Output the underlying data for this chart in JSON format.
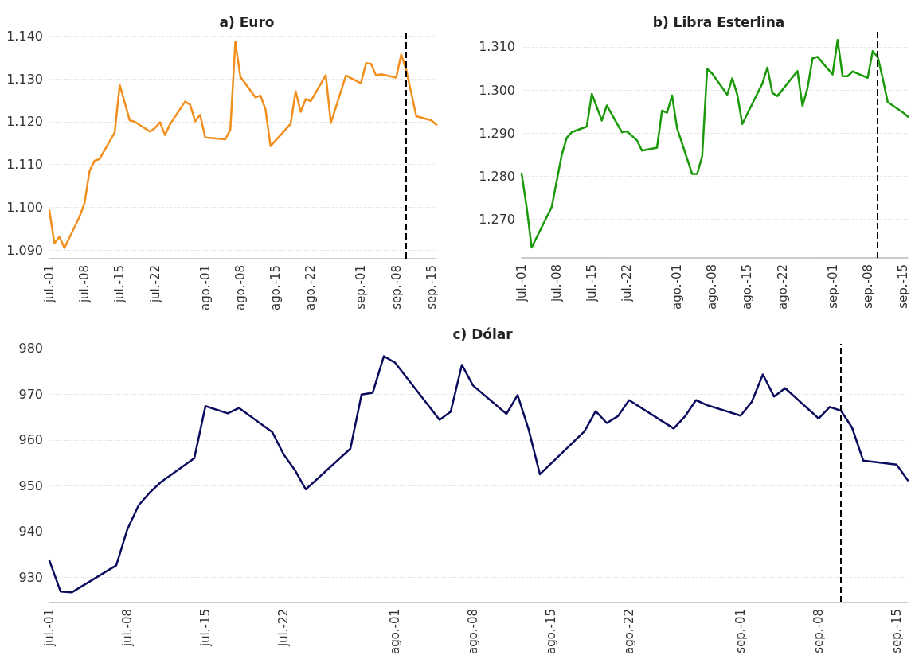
{
  "chart_data": [
    {
      "type": "line",
      "title": "a) Euro",
      "grid": "y",
      "line_style": "solid",
      "x": [
        "--07-01",
        "--07-02",
        "--07-03",
        "--07-04",
        "--07-07",
        "--07-08",
        "--07-09",
        "--07-10",
        "--07-11",
        "--07-14",
        "--07-15",
        "--07-17",
        "--07-18",
        "--07-21",
        "--07-22",
        "--07-23",
        "--07-24",
        "--07-25",
        "--07-28",
        "--07-29",
        "--07-30",
        "--07-31",
        "--08-01",
        "--08-05",
        "--08-06",
        "--08-07",
        "--08-08",
        "--08-11",
        "--08-12",
        "--08-13",
        "--08-14",
        "--08-18",
        "--08-19",
        "--08-20",
        "--08-21",
        "--08-22",
        "--08-25",
        "--08-26",
        "--08-29",
        "--09-01",
        "--09-02",
        "--09-03",
        "--09-04",
        "--09-05",
        "--09-08",
        "--09-09",
        "--09-10",
        "--09-12",
        "--09-15",
        "--09-16"
      ],
      "series": [
        {
          "color": "#f28e1c",
          "values": [
            1.0993,
            1.0916,
            1.0931,
            1.0905,
            1.0978,
            1.101,
            1.1085,
            1.1109,
            1.1113,
            1.1175,
            1.1286,
            1.1203,
            1.12,
            1.1177,
            1.1185,
            1.1199,
            1.1169,
            1.1194,
            1.1247,
            1.124,
            1.1201,
            1.1216,
            1.1163,
            1.1159,
            1.1181,
            1.1387,
            1.1305,
            1.1257,
            1.1261,
            1.1229,
            1.1143,
            1.1195,
            1.1271,
            1.1223,
            1.1253,
            1.1248,
            1.1309,
            1.1197,
            1.1308,
            1.129,
            1.1337,
            1.1335,
            1.1308,
            1.1311,
            1.1303,
            1.1357,
            1.1321,
            1.1213,
            1.1203,
            1.1193
          ]
        }
      ],
      "xlim": [
        "--07-01",
        "--09-16"
      ],
      "xticks": [
        {
          "value": "--07-01",
          "label": "jul.-01"
        },
        {
          "value": "--07-08",
          "label": "jul.-08"
        },
        {
          "value": "--07-15",
          "label": "jul.-15"
        },
        {
          "value": "--07-22",
          "label": "jul.-22"
        },
        {
          "value": "--08-01",
          "label": "ago.-01"
        },
        {
          "value": "--08-08",
          "label": "ago.-08"
        },
        {
          "value": "--08-15",
          "label": "ago.-15"
        },
        {
          "value": "--08-22",
          "label": "ago.-22"
        },
        {
          "value": "--09-01",
          "label": "sep.-01"
        },
        {
          "value": "--09-08",
          "label": "sep.-08"
        },
        {
          "value": "--09-15",
          "label": "sep.-15"
        }
      ],
      "ylim": [
        1.088,
        1.141
      ],
      "yticks": [
        {
          "value": 1.09,
          "label": "1.090"
        },
        {
          "value": 1.1,
          "label": "1.100"
        },
        {
          "value": 1.11,
          "label": "1.110"
        },
        {
          "value": 1.12,
          "label": "1.120"
        },
        {
          "value": 1.13,
          "label": "1.130"
        },
        {
          "value": 1.14,
          "label": "1.140"
        }
      ],
      "ref_lines": [
        {
          "axis": "x",
          "value": "--09-10",
          "color": "#000000",
          "line_style": "dashed"
        }
      ]
    },
    {
      "type": "line",
      "title": "b) Libra Esterlina",
      "grid": "y",
      "line_style": "solid",
      "x": [
        "--07-01",
        "--07-02",
        "--07-03",
        "--07-07",
        "--07-09",
        "--07-10",
        "--07-11",
        "--07-14",
        "--07-15",
        "--07-17",
        "--07-18",
        "--07-21",
        "--07-22",
        "--07-24",
        "--07-25",
        "--07-28",
        "--07-29",
        "--07-30",
        "--07-31",
        "--08-01",
        "--08-04",
        "--08-05",
        "--08-06",
        "--08-07",
        "--08-08",
        "--08-11",
        "--08-12",
        "--08-13",
        "--08-14",
        "--08-18",
        "--08-19",
        "--08-20",
        "--08-21",
        "--08-25",
        "--08-26",
        "--08-27",
        "--08-28",
        "--08-29",
        "--09-01",
        "--09-02",
        "--09-03",
        "--09-04",
        "--09-05",
        "--09-08",
        "--09-09",
        "--09-10",
        "--09-11",
        "--09-12",
        "--09-15",
        "--09-16"
      ],
      "series": [
        {
          "color": "#1a9a0a",
          "values": [
            1.2806,
            1.2729,
            1.2634,
            1.2728,
            1.2849,
            1.2889,
            1.2902,
            1.2915,
            1.2991,
            1.2929,
            1.2964,
            1.2902,
            1.2904,
            1.2883,
            1.2859,
            1.2866,
            1.2952,
            1.2947,
            1.2987,
            1.2911,
            1.2805,
            1.2805,
            1.2846,
            1.3049,
            1.3038,
            1.2989,
            1.3027,
            1.2989,
            1.2921,
            1.3015,
            1.3052,
            1.2993,
            1.2986,
            1.3044,
            1.2963,
            1.3004,
            1.3073,
            1.3077,
            1.3036,
            1.3116,
            1.3032,
            1.3032,
            1.3043,
            1.3028,
            1.309,
            1.3077,
            1.3027,
            1.2972,
            1.2948,
            1.2938
          ]
        }
      ],
      "xlim": [
        "--07-01",
        "--09-16"
      ],
      "xticks": [
        {
          "value": "--07-01",
          "label": "jul.-01"
        },
        {
          "value": "--07-08",
          "label": "jul.-08"
        },
        {
          "value": "--07-15",
          "label": "jul.-15"
        },
        {
          "value": "--07-22",
          "label": "jul.-22"
        },
        {
          "value": "--08-01",
          "label": "ago.-01"
        },
        {
          "value": "--08-08",
          "label": "ago.-08"
        },
        {
          "value": "--08-15",
          "label": "ago.-15"
        },
        {
          "value": "--08-22",
          "label": "ago.-22"
        },
        {
          "value": "--09-01",
          "label": "sep.-01"
        },
        {
          "value": "--09-08",
          "label": "sep.-08"
        },
        {
          "value": "--09-15",
          "label": "sep.-15"
        }
      ],
      "ylim": [
        1.261,
        1.3135
      ],
      "yticks": [
        {
          "value": 1.27,
          "label": "1.270"
        },
        {
          "value": 1.28,
          "label": "1.280"
        },
        {
          "value": 1.29,
          "label": "1.290"
        },
        {
          "value": 1.3,
          "label": "1.300"
        },
        {
          "value": 1.31,
          "label": "1.310"
        }
      ],
      "ref_lines": [
        {
          "axis": "x",
          "value": "--09-10",
          "color": "#000000",
          "line_style": "dashed"
        }
      ]
    },
    {
      "type": "line",
      "title": "c) Dólar",
      "grid": "y",
      "line_style": "solid",
      "x": [
        "--07-01",
        "--07-02",
        "--07-03",
        "--07-07",
        "--07-08",
        "--07-09",
        "--07-10",
        "--07-11",
        "--07-14",
        "--07-15",
        "--07-17",
        "--07-18",
        "--07-21",
        "--07-22",
        "--07-23",
        "--07-24",
        "--07-28",
        "--07-29",
        "--07-30",
        "--07-31",
        "--08-01",
        "--08-05",
        "--08-06",
        "--08-07",
        "--08-08",
        "--08-11",
        "--08-12",
        "--08-13",
        "--08-14",
        "--08-18",
        "--08-19",
        "--08-20",
        "--08-21",
        "--08-22",
        "--08-26",
        "--08-27",
        "--08-28",
        "--08-29",
        "--09-01",
        "--09-02",
        "--09-03",
        "--09-04",
        "--09-05",
        "--09-08",
        "--09-09",
        "--09-10",
        "--09-11",
        "--09-12",
        "--09-15",
        "--09-16"
      ],
      "series": [
        {
          "color": "#0b0c5e",
          "values": [
            933.7,
            926.9,
            926.7,
            932.6,
            940.5,
            945.7,
            948.5,
            950.8,
            956.0,
            967.4,
            965.8,
            967.0,
            961.7,
            956.9,
            953.5,
            949.2,
            958.1,
            969.9,
            970.3,
            978.3,
            976.9,
            964.4,
            966.2,
            976.4,
            971.9,
            965.7,
            969.8,
            962.2,
            952.5,
            961.9,
            966.3,
            963.7,
            965.2,
            968.7,
            962.5,
            965.1,
            968.7,
            967.6,
            965.3,
            968.3,
            974.3,
            969.5,
            971.3,
            964.7,
            967.2,
            966.4,
            962.7,
            955.5,
            954.6,
            951.2
          ]
        }
      ],
      "xlim": [
        "--07-01",
        "--09-16"
      ],
      "xticks": [
        {
          "value": "--07-01",
          "label": "jul.-01"
        },
        {
          "value": "--07-08",
          "label": "jul.-08"
        },
        {
          "value": "--07-15",
          "label": "jul.-15"
        },
        {
          "value": "--07-22",
          "label": "jul.-22"
        },
        {
          "value": "--08-01",
          "label": "ago.-01"
        },
        {
          "value": "--08-08",
          "label": "ago.-08"
        },
        {
          "value": "--08-15",
          "label": "ago.-15"
        },
        {
          "value": "--08-22",
          "label": "ago.-22"
        },
        {
          "value": "--09-01",
          "label": "sep.-01"
        },
        {
          "value": "--09-08",
          "label": "sep.-08"
        },
        {
          "value": "--09-15",
          "label": "sep.-15"
        }
      ],
      "ylim": [
        924.5,
        981
      ],
      "yticks": [
        930,
        940,
        950,
        960,
        970,
        980
      ],
      "ref_lines": [
        {
          "axis": "x",
          "value": "--09-10",
          "color": "#000000",
          "line_style": "dashed"
        }
      ]
    }
  ]
}
